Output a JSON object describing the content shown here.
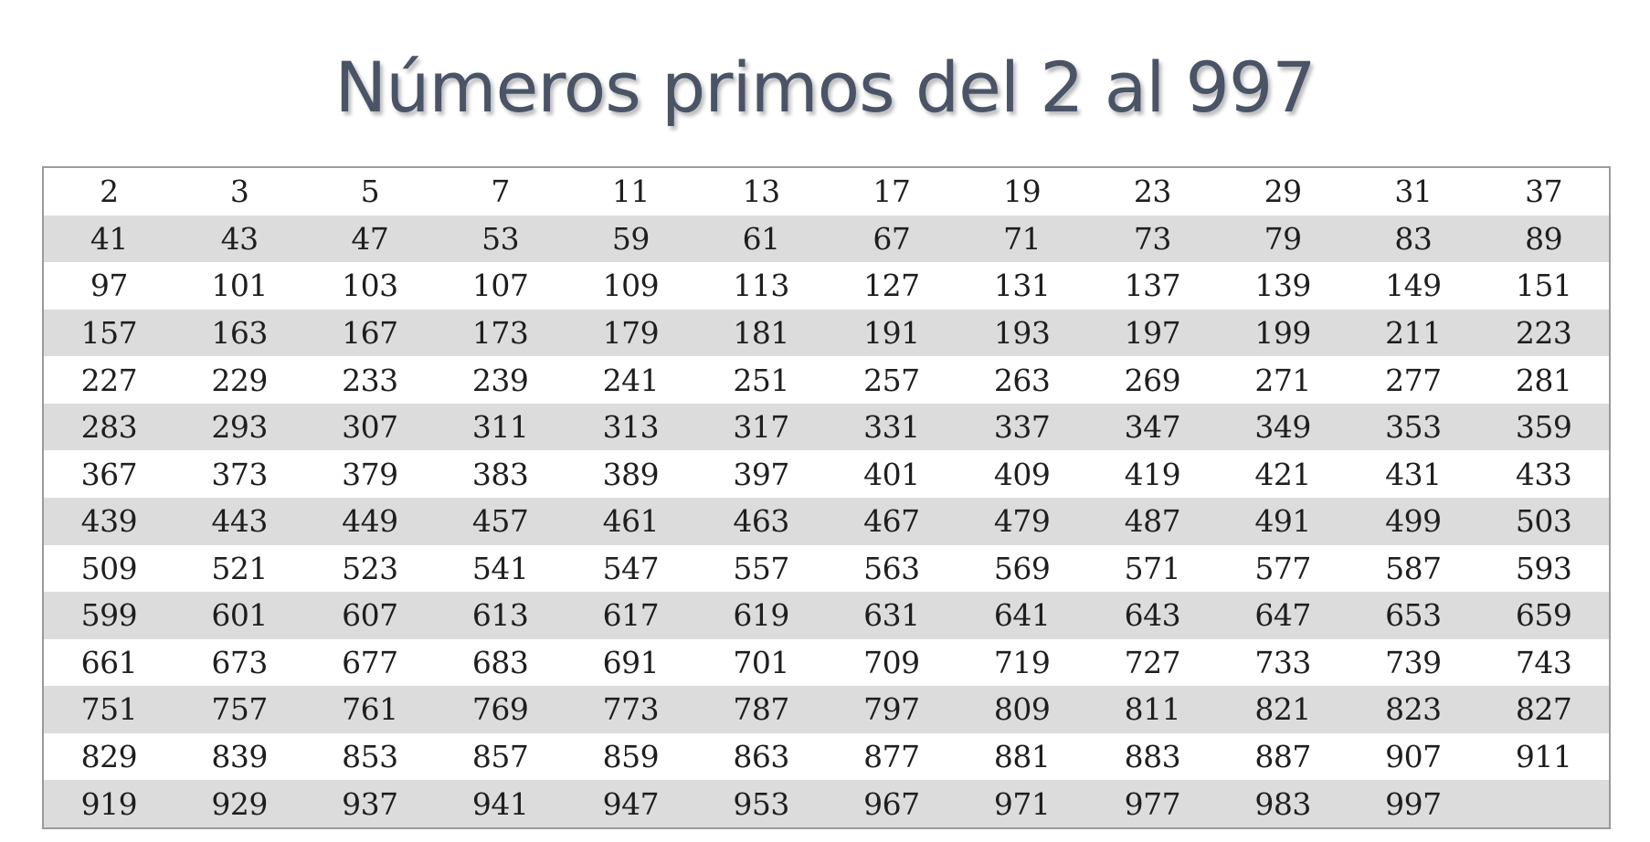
{
  "title": "Números primos del 2 al 997",
  "table": {
    "rows": [
      [
        "2",
        "3",
        "5",
        "7",
        "11",
        "13",
        "17",
        "19",
        "23",
        "29",
        "31",
        "37"
      ],
      [
        "41",
        "43",
        "47",
        "53",
        "59",
        "61",
        "67",
        "71",
        "73",
        "79",
        "83",
        "89"
      ],
      [
        "97",
        "101",
        "103",
        "107",
        "109",
        "113",
        "127",
        "131",
        "137",
        "139",
        "149",
        "151"
      ],
      [
        "157",
        "163",
        "167",
        "173",
        "179",
        "181",
        "191",
        "193",
        "197",
        "199",
        "211",
        "223"
      ],
      [
        "227",
        "229",
        "233",
        "239",
        "241",
        "251",
        "257",
        "263",
        "269",
        "271",
        "277",
        "281"
      ],
      [
        "283",
        "293",
        "307",
        "311",
        "313",
        "317",
        "331",
        "337",
        "347",
        "349",
        "353",
        "359"
      ],
      [
        "367",
        "373",
        "379",
        "383",
        "389",
        "397",
        "401",
        "409",
        "419",
        "421",
        "431",
        "433"
      ],
      [
        "439",
        "443",
        "449",
        "457",
        "461",
        "463",
        "467",
        "479",
        "487",
        "491",
        "499",
        "503"
      ],
      [
        "509",
        "521",
        "523",
        "541",
        "547",
        "557",
        "563",
        "569",
        "571",
        "577",
        "587",
        "593"
      ],
      [
        "599",
        "601",
        "607",
        "613",
        "617",
        "619",
        "631",
        "641",
        "643",
        "647",
        "653",
        "659"
      ],
      [
        "661",
        "673",
        "677",
        "683",
        "691",
        "701",
        "709",
        "719",
        "727",
        "733",
        "739",
        "743"
      ],
      [
        "751",
        "757",
        "761",
        "769",
        "773",
        "787",
        "797",
        "809",
        "811",
        "821",
        "823",
        "827"
      ],
      [
        "829",
        "839",
        "853",
        "857",
        "859",
        "863",
        "877",
        "881",
        "883",
        "887",
        "907",
        "911"
      ],
      [
        "919",
        "929",
        "937",
        "941",
        "947",
        "953",
        "967",
        "971",
        "977",
        "983",
        "997",
        ""
      ]
    ]
  }
}
